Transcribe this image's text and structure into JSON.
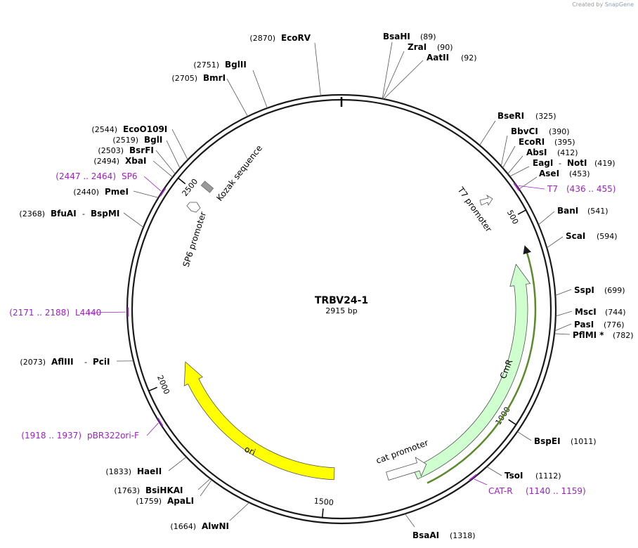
{
  "credit": {
    "prefix": "Created by",
    "brand": "SnapGene"
  },
  "plasmid": {
    "name": "TRBV24-1",
    "length_label": "2915 bp",
    "length": 2915
  },
  "backbone": {
    "color": "#1a1a1a",
    "ticks": [
      "500",
      "1000",
      "1500",
      "2000",
      "2500"
    ]
  },
  "features": [
    {
      "label": "CmR",
      "color": "#cfffcf"
    },
    {
      "label": "ori",
      "color": "#ffff00"
    },
    {
      "label": "cat promoter",
      "color": "#ffffff"
    },
    {
      "label": "T7 promoter",
      "color": "#ffffff"
    },
    {
      "label": "SP6 promoter",
      "color": "#ffffff"
    },
    {
      "label": "Kozak sequence",
      "color": "#999999"
    }
  ],
  "orf_color": "#5a8a2a",
  "sites": [
    {
      "name": "EcoRV",
      "pos": "(2870)"
    },
    {
      "name": "BglII",
      "pos": "(2751)"
    },
    {
      "name": "BmrI",
      "pos": "(2705)"
    },
    {
      "name": "BsaHI",
      "pos": "(89)"
    },
    {
      "name": "ZraI",
      "pos": "(90)"
    },
    {
      "name": "AatII",
      "pos": "(92)"
    },
    {
      "name": "BseRI",
      "pos": "(325)"
    },
    {
      "name": "BbvCI",
      "pos": "(390)"
    },
    {
      "name": "EcoRI",
      "pos": "(395)"
    },
    {
      "name": "AbsI",
      "pos": "(412)"
    },
    {
      "name": "EagI",
      "name2": "NotI",
      "pos": "(419)"
    },
    {
      "name": "AseI",
      "pos": "(453)"
    },
    {
      "name": "BanI",
      "pos": "(541)"
    },
    {
      "name": "ScaI",
      "pos": "(594)"
    },
    {
      "name": "SspI",
      "pos": "(699)"
    },
    {
      "name": "MscI",
      "pos": "(744)"
    },
    {
      "name": "PasI",
      "pos": "(776)"
    },
    {
      "name": "PflMI *",
      "pos": "(782)"
    },
    {
      "name": "BspEI",
      "pos": "(1011)"
    },
    {
      "name": "TsoI",
      "pos": "(1112)"
    },
    {
      "name": "BsaAI",
      "pos": "(1318)"
    },
    {
      "name": "AlwNI",
      "pos": "(1664)"
    },
    {
      "name": "ApaLI",
      "pos": "(1759)"
    },
    {
      "name": "BsiHKAI",
      "pos": "(1763)"
    },
    {
      "name": "HaeII",
      "pos": "(1833)"
    },
    {
      "name": "AflIII",
      "name2": "PciI",
      "pos": "(2073)"
    },
    {
      "name": "BfuAI",
      "name2": "BspMI",
      "pos": "(2368)"
    },
    {
      "name": "PmeI",
      "pos": "(2440)"
    },
    {
      "name": "XbaI",
      "pos": "(2494)"
    },
    {
      "name": "BsrFI",
      "pos": "(2503)"
    },
    {
      "name": "BglI",
      "pos": "(2519)"
    },
    {
      "name": "EcoO109I",
      "pos": "(2544)"
    }
  ],
  "primers": [
    {
      "name": "SP6",
      "range": "(2447 .. 2464)"
    },
    {
      "name": "T7",
      "range": "(436 .. 455)"
    },
    {
      "name": "L4440",
      "range": "(2171 .. 2188)"
    },
    {
      "name": "pBR322ori-F",
      "range": "(1918 .. 1937)"
    },
    {
      "name": "CAT-R",
      "range": "(1140 .. 1159)"
    }
  ],
  "primer_color": "#a020c8"
}
